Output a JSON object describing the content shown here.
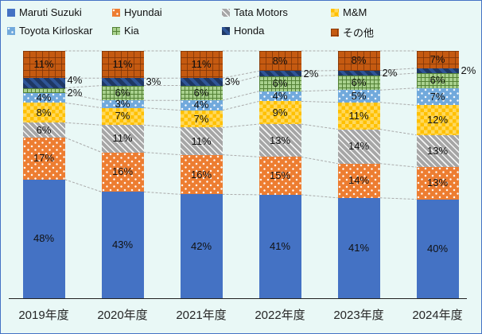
{
  "colors": {
    "background": "#E9F8F6",
    "chart_border": "#4472C4",
    "axis_line": "#222222",
    "connector_line": "#ABABAB",
    "label_text": "#111111"
  },
  "chart_data": {
    "type": "bar",
    "stacked": true,
    "percent_scale": true,
    "unit": "%",
    "legend_position": "top",
    "grid": false,
    "series_connector_lines": true,
    "categories": [
      "2019年度",
      "2020年度",
      "2021年度",
      "2022年度",
      "2023年度",
      "2024年度"
    ],
    "series": [
      {
        "name": "Maruti Suzuki",
        "key": "maruti-suzuki",
        "color": "#4472C4",
        "pattern": "solid",
        "values": [
          48,
          43,
          42,
          41,
          41,
          40
        ]
      },
      {
        "name": "Hyundai",
        "key": "hyundai",
        "color": "#ED7D31",
        "pattern": "white-dots",
        "values": [
          17,
          16,
          16,
          15,
          14,
          13
        ]
      },
      {
        "name": "Tata Motors",
        "key": "tata-motors",
        "color": "#A6A6A6",
        "pattern": "diagonal-hatch",
        "values": [
          6,
          11,
          11,
          13,
          14,
          13
        ]
      },
      {
        "name": "M&M",
        "key": "m-and-m",
        "color": "#FFC000",
        "pattern": "checker",
        "values": [
          8,
          7,
          7,
          9,
          11,
          12
        ]
      },
      {
        "name": "Toyota Kirloskar",
        "key": "toyota-kirloskar",
        "color": "#71A9DC",
        "pattern": "white-dots",
        "values": [
          4,
          3,
          4,
          4,
          5,
          7
        ]
      },
      {
        "name": "Kia",
        "key": "kia",
        "color": "#A9D18E",
        "pattern": "green-grid",
        "values": [
          2,
          6,
          6,
          6,
          6,
          6
        ]
      },
      {
        "name": "Honda",
        "key": "honda",
        "color": "#1F3864",
        "pattern": "navy-diagonal-stripes",
        "values": [
          4,
          3,
          3,
          2,
          2,
          2
        ]
      },
      {
        "name": "その他",
        "key": "other",
        "color": "#C55A11",
        "pattern": "dark-dotted-grid",
        "values": [
          11,
          11,
          11,
          8,
          8,
          7
        ]
      }
    ],
    "outside_labels": [
      {
        "series": "Honda",
        "year_indices": [
          0,
          1,
          2,
          3,
          4,
          5
        ]
      },
      {
        "series": "Kia",
        "year_indices": [
          0
        ]
      }
    ]
  }
}
